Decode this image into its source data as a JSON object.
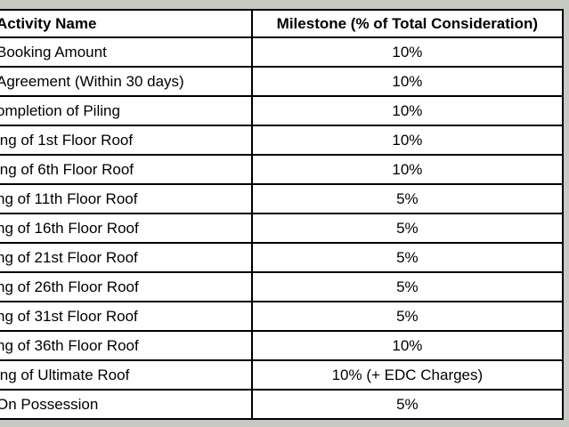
{
  "colors": {
    "page_background": "#c7c9c3",
    "table_background": "#ffffff",
    "table_border": "#000000",
    "text": "#000000"
  },
  "table": {
    "columns": [
      {
        "label": "Activity Name",
        "align": "left"
      },
      {
        "label": "Milestone (% of Total Consideration)",
        "align": "center"
      }
    ],
    "rows": [
      {
        "activity": "Booking Amount",
        "milestone": "10%"
      },
      {
        "activity": "Agreement (Within 30 days)",
        "milestone": "10%"
      },
      {
        "activity": "ompletion of Piling",
        "milestone": "10%"
      },
      {
        "activity": "ing of 1st Floor Roof",
        "milestone": "10%"
      },
      {
        "activity": "ing of 6th Floor Roof",
        "milestone": "10%"
      },
      {
        "activity": "ng of 11th Floor Roof",
        "milestone": "5%"
      },
      {
        "activity": "ng of 16th Floor Roof",
        "milestone": "5%"
      },
      {
        "activity": "ng of 21st Floor Roof",
        "milestone": "5%"
      },
      {
        "activity": "ng of 26th Floor Roof",
        "milestone": "5%"
      },
      {
        "activity": "ng of 31st Floor Roof",
        "milestone": "5%"
      },
      {
        "activity": "ng of 36th Floor Roof",
        "milestone": "10%"
      },
      {
        "activity": "ing of Ultimate Roof",
        "milestone": "10% (+ EDC Charges)"
      },
      {
        "activity": "On Possession",
        "milestone": "5%"
      }
    ]
  }
}
